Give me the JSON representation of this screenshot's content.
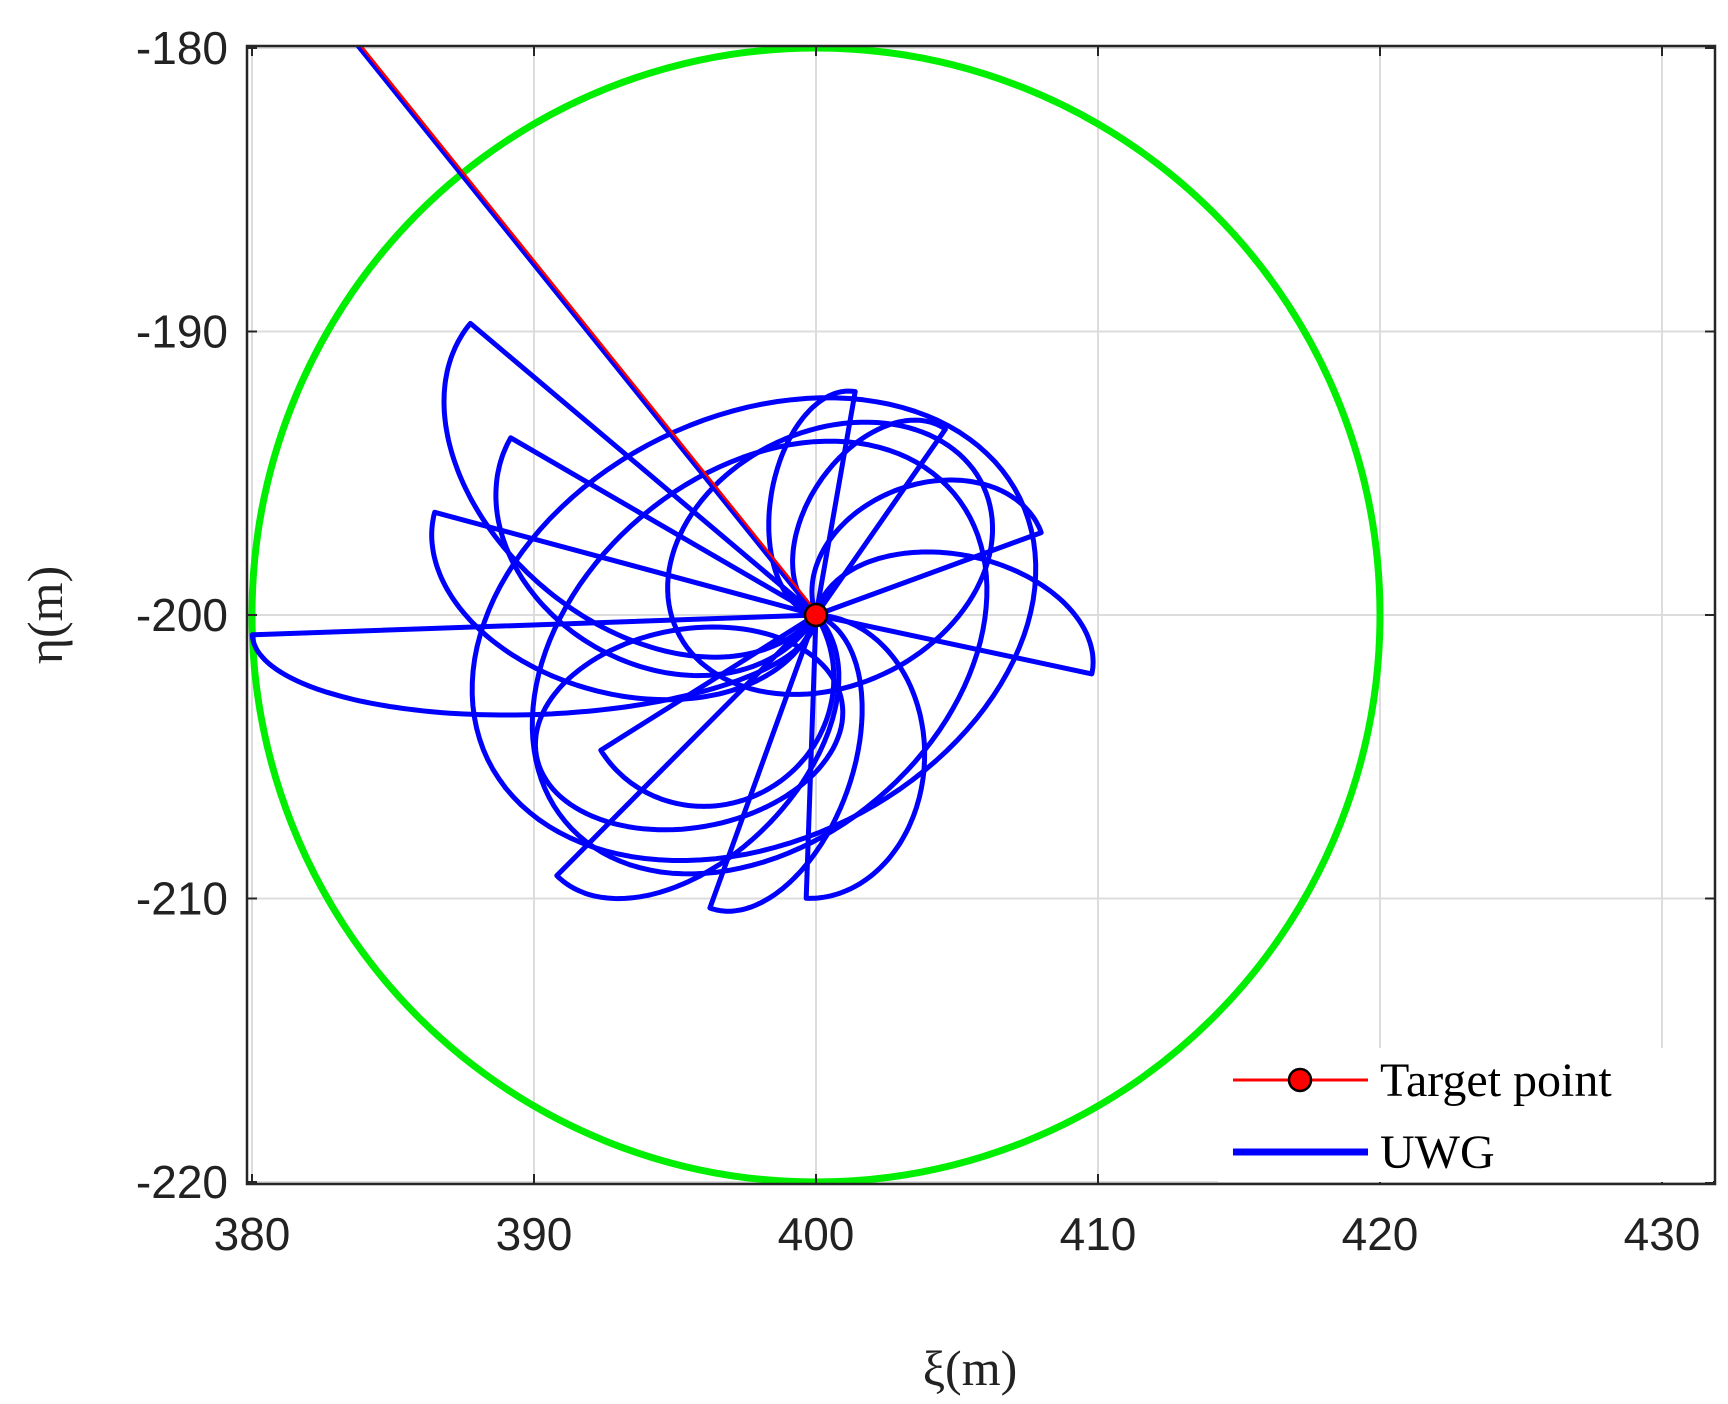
{
  "chart_data": {
    "type": "line",
    "xlabel": "ξ(m)",
    "ylabel": "η(m)",
    "xlim": [
      380,
      431
    ],
    "ylim": [
      -220,
      -180
    ],
    "xticks": [
      "380",
      "390",
      "400",
      "410",
      "420",
      "430"
    ],
    "yticks": [
      "-180",
      "-190",
      "-200",
      "-210",
      "-220"
    ],
    "grid": true,
    "legend": {
      "position": "bottom-right",
      "entries": [
        {
          "label": "Target point",
          "color": "#ff0000",
          "marker": "circle"
        },
        {
          "label": "UWG",
          "color": "#0000ff",
          "marker": "none"
        }
      ]
    },
    "target_point": {
      "x": 400,
      "y": -200
    },
    "boundary_circle": {
      "center_x": 400,
      "center_y": -200,
      "radius": 20,
      "color": "#00ee00"
    },
    "approach_path": {
      "x": [
        383.5,
        400
      ],
      "y": [
        -179.6,
        -200
      ]
    },
    "uwg_loops": [
      {
        "kind": "petal",
        "direction_deg": 182,
        "length": 20,
        "width": 5.5
      },
      {
        "kind": "petal",
        "direction_deg": 140,
        "length": 16,
        "width": 9.5
      },
      {
        "kind": "petal",
        "direction_deg": 150,
        "length": 12.5,
        "width": 8.5
      },
      {
        "kind": "petal",
        "direction_deg": 165,
        "length": 14,
        "width": 8
      },
      {
        "kind": "petal",
        "direction_deg": 212,
        "length": 9,
        "width": 7.5
      },
      {
        "kind": "petal",
        "direction_deg": 225,
        "length": 13,
        "width": 7
      },
      {
        "kind": "petal",
        "direction_deg": 250,
        "length": 11,
        "width": 5.5
      },
      {
        "kind": "petal",
        "direction_deg": 268,
        "length": 10,
        "width": 7
      },
      {
        "kind": "petal",
        "direction_deg": 80,
        "length": 8,
        "width": 4
      },
      {
        "kind": "petal",
        "direction_deg": 55,
        "length": 8,
        "width": 4.5
      },
      {
        "kind": "petal",
        "direction_deg": 20,
        "length": 8.5,
        "width": 5.5
      },
      {
        "kind": "petal",
        "direction_deg": -12,
        "length": 10,
        "width": 5.5
      },
      {
        "kind": "ellipse",
        "center_x": 397.8,
        "center_y": -200.5,
        "rx": 10.5,
        "ry": 7.5,
        "angle_deg": 26
      },
      {
        "kind": "ellipse",
        "center_x": 398,
        "center_y": -201.5,
        "rx": 9,
        "ry": 6.5,
        "angle_deg": 40
      },
      {
        "kind": "ellipse",
        "center_x": 400.5,
        "center_y": -198,
        "rx": 6,
        "ry": 4.5,
        "angle_deg": 25
      },
      {
        "kind": "ellipse",
        "center_x": 395.5,
        "center_y": -204,
        "rx": 5.5,
        "ry": 3.5,
        "angle_deg": 10
      }
    ]
  }
}
